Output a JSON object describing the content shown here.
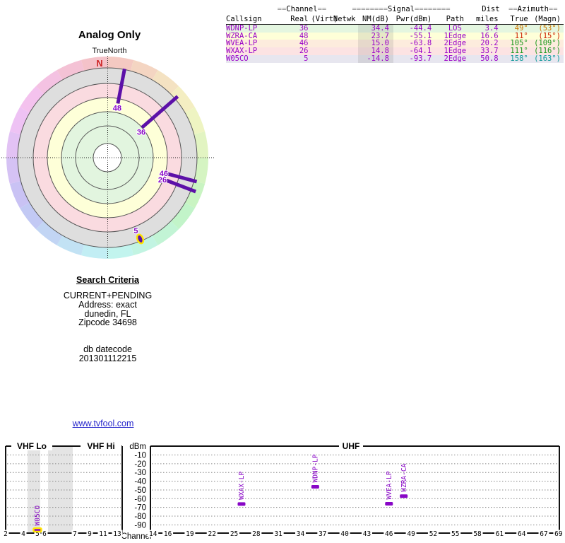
{
  "colors": {
    "table_text_purple": "#9a00c8",
    "spoke_purple": "#5c10a8",
    "bar_purple": "#8806c6",
    "highlight_yellow": "#ffe400",
    "north_red": "#cc2222",
    "link_blue": "#2929cc",
    "ring_gray": "#dedede",
    "ring_pink": "#fadbe0",
    "ring_yellow": "#feffd8",
    "ring_green": "#e2f5df",
    "grid_gray": "#888888"
  },
  "polar": {
    "title": "Analog Only",
    "north_label": "TrueNorth",
    "north_letter": "N",
    "stations": [
      {
        "channel": "48",
        "azimuth_deg": 11,
        "nm_db": 23.7,
        "marker": "spoke",
        "r_inner": 78,
        "r_outer": 128
      },
      {
        "channel": "36",
        "azimuth_deg": 49,
        "nm_db": 34.4,
        "marker": "spoke",
        "r_inner": 65,
        "r_outer": 132
      },
      {
        "channel": "46",
        "azimuth_deg": 105,
        "nm_db": 15.0,
        "marker": "spoke",
        "r_inner": 88,
        "r_outer": 131
      },
      {
        "channel": "26",
        "azimuth_deg": 111,
        "nm_db": 14.8,
        "marker": "spoke",
        "r_inner": 89,
        "r_outer": 134
      },
      {
        "channel": "5",
        "azimuth_deg": 158,
        "nm_db": -14.8,
        "marker": "dot",
        "r_inner": 124,
        "r_outer": 124
      }
    ]
  },
  "table": {
    "group_headers": {
      "channel_pre": "==",
      "channel": "Channel",
      "channel_post": "==",
      "signal_pre": "========",
      "signal": "Signal",
      "signal_post": "========",
      "dist": "Dist",
      "azimuth_pre": "==",
      "azimuth": "Azimuth",
      "azimuth_post": "=="
    },
    "columns": [
      "Callsign",
      "Real",
      "(Virt)",
      "Netwk",
      "NM(dB)",
      "Pwr(dBm)",
      "Path",
      "miles",
      "True",
      "(Magn)"
    ],
    "rows": [
      {
        "callsign": "WDNP-LP",
        "real": "36",
        "virt": "",
        "netwk": "",
        "nm": "34.4",
        "pwr": "-44.4",
        "path": "LOS",
        "miles": "3.4",
        "az_true": "49°",
        "az_magn": "(53°)",
        "row_color": "#e4f6e0",
        "azimuth_color": "#cc7700"
      },
      {
        "callsign": "WZRA-CA",
        "real": "48",
        "virt": "",
        "netwk": "",
        "nm": "23.7",
        "pwr": "-55.1",
        "path": "1Edge",
        "miles": "16.6",
        "az_true": "11°",
        "az_magn": "(15°)",
        "row_color": "#feffd8",
        "azimuth_color": "#cc2200"
      },
      {
        "callsign": "WVEA-LP",
        "real": "46",
        "virt": "",
        "netwk": "",
        "nm": "15.0",
        "pwr": "-63.8",
        "path": "2Edge",
        "miles": "20.2",
        "az_true": "105°",
        "az_magn": "(109°)",
        "row_color": "#fdecdd",
        "azimuth_color": "#1a9a1a"
      },
      {
        "callsign": "WXAX-LP",
        "real": "26",
        "virt": "",
        "netwk": "",
        "nm": "14.8",
        "pwr": "-64.1",
        "path": "1Edge",
        "miles": "33.7",
        "az_true": "111°",
        "az_magn": "(116°)",
        "row_color": "#fce3e3",
        "azimuth_color": "#1a9a1a"
      },
      {
        "callsign": "W05CO",
        "real": "5",
        "virt": "",
        "netwk": "",
        "nm": "-14.8",
        "pwr": "-93.7",
        "path": "2Edge",
        "miles": "50.8",
        "az_true": "158°",
        "az_magn": "(163°)",
        "row_color": "#e7e6ef",
        "azimuth_color": "#0d9898"
      }
    ]
  },
  "criteria": {
    "heading": "Search Criteria",
    "lines": [
      "CURRENT+PENDING",
      "Address: exact",
      "dunedin, FL",
      "Zipcode 34698"
    ],
    "db_lines": [
      "db datecode",
      "201301112215"
    ]
  },
  "link": {
    "text": "www.tvfool.com"
  },
  "chart_data": {
    "type": "bar",
    "band_labels": [
      "VHF Lo",
      "VHF Hi",
      "UHF"
    ],
    "ylabel": "dBm",
    "xlabel": "Channel",
    "ylim": [
      -95,
      -5
    ],
    "y_ticks": [
      -10,
      -20,
      -30,
      -40,
      -50,
      -60,
      -70,
      -80,
      -90
    ],
    "vhf_ticks": [
      2,
      4,
      5,
      6,
      7,
      9,
      11,
      13
    ],
    "uhf_ticks": [
      14,
      16,
      19,
      22,
      25,
      28,
      31,
      34,
      37,
      40,
      43,
      46,
      49,
      52,
      55,
      58,
      61,
      64,
      67,
      69
    ],
    "bars": [
      {
        "callsign": "W05CO",
        "channel": 5,
        "dbm": -93.7,
        "highlight": true
      },
      {
        "callsign": "WXAX-LP",
        "channel": 26,
        "dbm": -64.1,
        "highlight": false
      },
      {
        "callsign": "WDNP-LP",
        "channel": 36,
        "dbm": -44.4,
        "highlight": false
      },
      {
        "callsign": "WVEA-LP",
        "channel": 46,
        "dbm": -63.8,
        "highlight": false
      },
      {
        "callsign": "WZRA-CA",
        "channel": 48,
        "dbm": -55.1,
        "highlight": false
      }
    ]
  }
}
